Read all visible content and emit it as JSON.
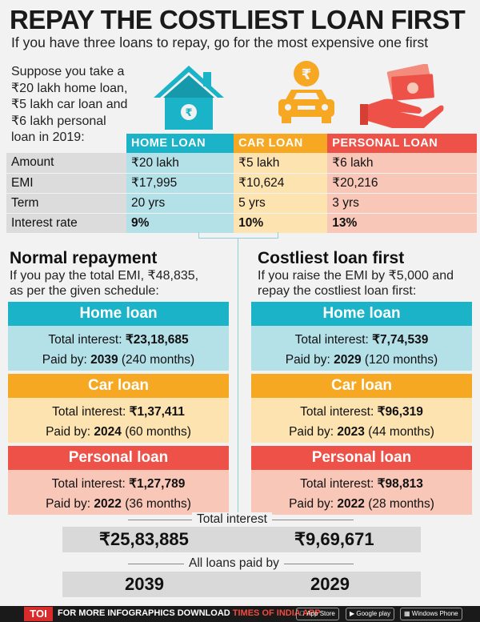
{
  "header": {
    "title": "REPAY THE COSTLIEST LOAN FIRST",
    "subtitle": "If you have three loans to repay, go for the most expensive one first"
  },
  "intro": {
    "line1": "Suppose you take a",
    "line2": "₹20 lakh home loan,",
    "line3": "₹5 lakh car loan and",
    "line4": "₹6 lakh personal",
    "line5": "loan in 2019:"
  },
  "colors": {
    "home": "#1bb3c8",
    "car": "#f7a823",
    "personal": "#ee5147"
  },
  "table": {
    "headers": [
      "HOME LOAN",
      "CAR LOAN",
      "PERSONAL LOAN"
    ],
    "rows": [
      {
        "label": "Amount",
        "home": "₹20 lakh",
        "car": "₹5 lakh",
        "personal": "₹6 lakh"
      },
      {
        "label": "EMI",
        "home": "₹17,995",
        "car": "₹10,624",
        "personal": "₹20,216"
      },
      {
        "label": "Term",
        "home": "20 yrs",
        "car": "5 yrs",
        "personal": "3 yrs"
      },
      {
        "label": "Interest rate",
        "home": "9%",
        "car": "10%",
        "personal": "13%"
      }
    ]
  },
  "normal": {
    "title": "Normal repayment",
    "desc1": "If you pay the total EMI, ₹48,835,",
    "desc2": "as per the given schedule:",
    "cards": [
      {
        "name": "Home loan",
        "interest_label": "Total interest: ",
        "interest": "₹23,18,685",
        "paid_label": "Paid by: ",
        "paid_year": "2039",
        "paid_months": " (240 months)"
      },
      {
        "name": "Car loan",
        "interest_label": "Total interest: ",
        "interest": "₹1,37,411",
        "paid_label": "Paid by: ",
        "paid_year": "2024",
        "paid_months": " (60 months)"
      },
      {
        "name": "Personal loan",
        "interest_label": "Total interest: ",
        "interest": "₹1,27,789",
        "paid_label": "Paid by: ",
        "paid_year": "2022",
        "paid_months": " (36 months)"
      }
    ]
  },
  "costliest": {
    "title": "Costliest loan first",
    "desc1": "If you raise the EMI by ₹5,000 and",
    "desc2": "repay the costliest loan first:",
    "cards": [
      {
        "name": "Home loan",
        "interest_label": "Total interest: ",
        "interest": "₹7,74,539",
        "paid_label": "Paid by: ",
        "paid_year": "2029",
        "paid_months": " (120 months)"
      },
      {
        "name": "Car loan",
        "interest_label": "Total interest: ",
        "interest": "₹96,319",
        "paid_label": "Paid by: ",
        "paid_year": "2023",
        "paid_months": " (44 months)"
      },
      {
        "name": "Personal loan",
        "interest_label": "Total interest: ",
        "interest": "₹98,813",
        "paid_label": "Paid by: ",
        "paid_year": "2022",
        "paid_months": " (28 months)"
      }
    ]
  },
  "summary": {
    "total_label": "Total interest",
    "total_normal": "₹25,83,885",
    "total_costliest": "₹9,69,671",
    "paid_label": "All loans paid by",
    "paid_normal": "2039",
    "paid_costliest": "2029"
  },
  "footer": {
    "logo": "TOI",
    "text": "FOR MORE  INFOGRAPHICS DOWNLOAD ",
    "app": "TIMES OF INDIA APP",
    "app_store": "App Store",
    "app_store_small": "Available on the",
    "google_play": "Google play",
    "google_play_small": "Available on",
    "windows": "Windows Phone"
  }
}
